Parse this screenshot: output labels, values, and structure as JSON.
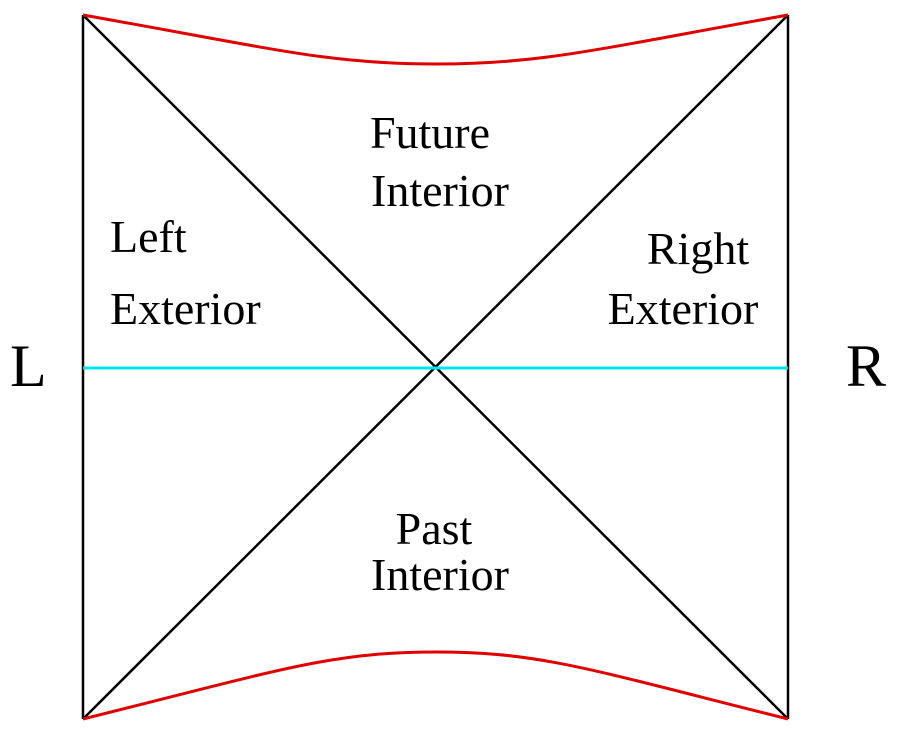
{
  "diagram": {
    "side_left": "L",
    "side_right": "R",
    "regions": {
      "future_interior": [
        "Future",
        "Interior"
      ],
      "past_interior": [
        "Past",
        "Interior"
      ],
      "left_exterior": [
        "Left",
        "Exterior"
      ],
      "right_exterior": [
        "Right",
        "Exterior"
      ]
    }
  },
  "colors": {
    "boundary": "#000000",
    "singularity": "#e00000",
    "time_slice": "#00e5ee",
    "background": "#ffffff"
  }
}
